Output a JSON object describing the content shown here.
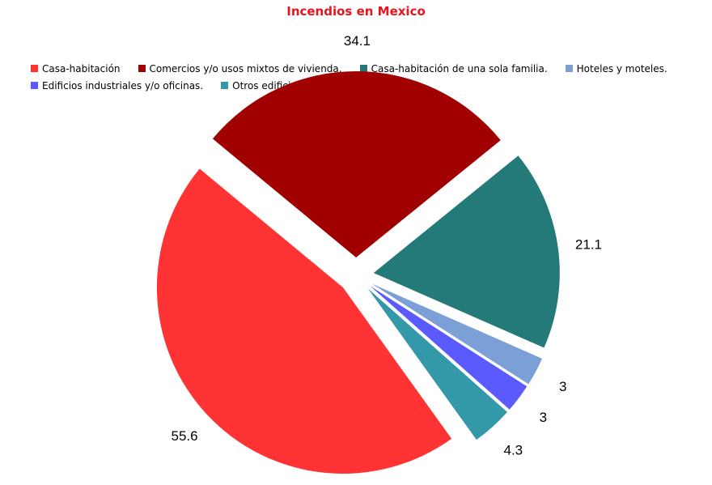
{
  "chart_data": {
    "type": "pie",
    "title": "Incendios en Mexico",
    "legend_position": "top",
    "categories": [
      "Casa-habitación",
      "Comercios y/o usos mixtos de vivienda.",
      "Casa-habitación de una sola familia.",
      "Hoteles y moteles.",
      "Edificios industriales y/o oficinas.",
      "Otros edificios."
    ],
    "values": [
      55.6,
      34.1,
      21.1,
      3,
      3,
      4.3
    ],
    "value_labels": [
      "55.6",
      "34.1",
      "21.1",
      "3",
      "3",
      "4.3"
    ],
    "colors": [
      "#ff3333",
      "#a00000",
      "#237a78",
      "#7b9fd6",
      "#5a5aff",
      "#3399a8"
    ]
  }
}
